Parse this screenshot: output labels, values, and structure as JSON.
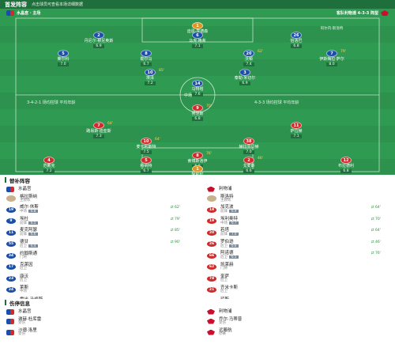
{
  "header": {
    "title": "首发阵容",
    "subtitle": "点击球员可查看本场详细数据"
  },
  "pitch": {
    "home_team": "水晶宫 · 主场",
    "away_team": "客队利物浦 4-3-3 阵型",
    "coach": "阿尔内·斯洛特",
    "home_formation": "3-4-2-1",
    "away_formation": "4-3-3",
    "home_formation_note": "场均控球 平均年龄",
    "away_formation_note": "场均控球 平均年龄",
    "center_text": "中场",
    "players": [
      {
        "side": "gk",
        "num": "1",
        "name": "迪恩·亨德森",
        "score": "7.5"
      },
      {
        "side": "home",
        "num": "2",
        "name": "丹尼尔·穆尼奥斯",
        "score": "6.9"
      },
      {
        "side": "home",
        "num": "6",
        "name": "马克·格希",
        "score": "7.1"
      },
      {
        "side": "home",
        "num": "26",
        "name": "恰洛巴",
        "score": "6.8"
      },
      {
        "side": "home",
        "num": "5",
        "name": "莱尔科",
        "score": "7.0"
      },
      {
        "side": "home",
        "num": "8",
        "name": "勒尔马",
        "score": "6.7"
      },
      {
        "side": "home",
        "num": "20",
        "name": "沃顿",
        "score": "7.4",
        "ev": "62'"
      },
      {
        "side": "home",
        "num": "7",
        "name": "伊斯梅拉·萨尔",
        "score": "8.0",
        "ev": "79'"
      },
      {
        "side": "home",
        "num": "10",
        "name": "埃泽",
        "score": "7.2",
        "ev": "85'"
      },
      {
        "side": "home",
        "num": "3",
        "name": "泰勒·米切尔",
        "score": "6.9"
      },
      {
        "side": "home",
        "num": "14",
        "name": "马特塔",
        "score": "7.6"
      },
      {
        "side": "away",
        "num": "9",
        "name": "努涅斯",
        "score": "6.8",
        "ev": "70'"
      },
      {
        "side": "away",
        "num": "7",
        "name": "路易斯·迪亚斯",
        "score": "7.3",
        "ev": "64'"
      },
      {
        "side": "away",
        "num": "11",
        "name": "萨拉赫",
        "score": "7.1"
      },
      {
        "side": "away",
        "num": "10",
        "name": "麦卡利斯特",
        "score": "7.5",
        "ev": "64'"
      },
      {
        "side": "away",
        "num": "38",
        "name": "赫拉芬贝赫",
        "score": "7.0"
      },
      {
        "side": "away",
        "num": "8",
        "name": "索博斯洛伊",
        "score": "6.9",
        "ev": "76'"
      },
      {
        "side": "away",
        "num": "4",
        "name": "范戴克",
        "score": "7.2"
      },
      {
        "side": "away",
        "num": "5",
        "name": "科纳特",
        "score": "6.7"
      },
      {
        "side": "away",
        "num": "2",
        "name": "戈麦斯",
        "score": "6.6",
        "ev": "46'"
      },
      {
        "side": "away",
        "num": "12",
        "name": "布拉德利",
        "score": "6.8"
      },
      {
        "side": "gk",
        "num": "1",
        "name": "阿利松",
        "score": "7.9"
      }
    ]
  },
  "subs": {
    "title": "替补阵容",
    "home_team": "水晶宫",
    "away_team": "利物浦",
    "home_coach": {
      "name": "格拉斯纳",
      "role": "主教练"
    },
    "away_coach": {
      "name": "斯洛特",
      "role": "主教练"
    },
    "home": [
      {
        "num": "19",
        "name": "威尔·休斯",
        "pos": "中场",
        "pill": "6.8",
        "time": "62'"
      },
      {
        "num": "9",
        "name": "埃杜",
        "pos": "前锋",
        "pill": "6.5",
        "time": "79'"
      },
      {
        "num": "11",
        "name": "麦克阿瑟",
        "pos": "前锋",
        "pill": "6.6",
        "time": "85'"
      },
      {
        "num": "55",
        "name": "德甘",
        "pos": "后卫",
        "pill": "6.4",
        "time": "90'"
      },
      {
        "num": "34",
        "name": "约翰斯通",
        "pos": "门将"
      },
      {
        "num": "17",
        "name": "克莱因",
        "pos": "后卫"
      },
      {
        "num": "23",
        "name": "康沃",
        "pos": "后卫"
      },
      {
        "num": "24",
        "name": "莱斯",
        "pos": "中场"
      },
      {
        "num": "31",
        "name": "雷米·马修斯",
        "pos": "门将"
      }
    ],
    "away": [
      {
        "num": "18",
        "name": "加克波",
        "pos": "前锋",
        "pill": "6.9",
        "time": "64'"
      },
      {
        "num": "19",
        "name": "埃利奥特",
        "pos": "中场",
        "pill": "6.7",
        "time": "70'"
      },
      {
        "num": "20",
        "name": "若塔",
        "pos": "前锋",
        "pill": "7.0",
        "time": "64'"
      },
      {
        "num": "26",
        "name": "罗伯逊",
        "pos": "后卫",
        "pill": "6.6",
        "time": "46'"
      },
      {
        "num": "66",
        "name": "阿诺德",
        "pos": "后卫",
        "pill": "6.5",
        "time": "76'"
      },
      {
        "num": "62",
        "name": "凯莱赫",
        "pos": "门将"
      },
      {
        "num": "78",
        "name": "奎萨",
        "pos": "后卫"
      },
      {
        "num": "21",
        "name": "齐米卡斯",
        "pos": "后卫"
      },
      {
        "num": "17",
        "name": "琼斯",
        "pos": "中场"
      }
    ]
  },
  "injuries": {
    "title": "伤停信息",
    "home_team": "水晶宫",
    "away_team": "利物浦",
    "home": [
      {
        "name": "谢赫·杜库雷",
        "status": "受伤"
      },
      {
        "name": "沙德·洛里",
        "status": "受伤"
      }
    ],
    "away": [
      {
        "name": "乔尔·马蒂普",
        "status": "受伤"
      },
      {
        "name": "远藤航",
        "status": "停赛"
      }
    ]
  }
}
